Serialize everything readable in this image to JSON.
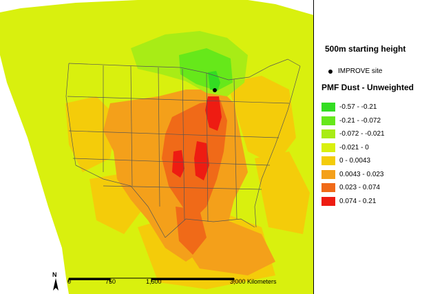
{
  "title": "500m starting height",
  "site_marker": {
    "label": "IMPROVE site",
    "icon": "black-dot-icon"
  },
  "legend": {
    "title": "PMF Dust - Unweighted",
    "classes": [
      {
        "label": "-0.57 - -0.21",
        "color": "#33dd22"
      },
      {
        "label": "-0.21 - -0.072",
        "color": "#66e81a"
      },
      {
        "label": "-0.072 - -0.021",
        "color": "#a8ec16"
      },
      {
        "label": "-0.021 - 0",
        "color": "#d9f00e"
      },
      {
        "label": "0 - 0.0043",
        "color": "#f4cc0a"
      },
      {
        "label": "0.0043 - 0.023",
        "color": "#f4a01a"
      },
      {
        "label": "0.023 - 0.074",
        "color": "#f06a18"
      },
      {
        "label": "0.074 - 0.21",
        "color": "#ee1c12"
      }
    ]
  },
  "scale_bar": {
    "labels": [
      "0",
      "750",
      "1,500",
      "3,000 Kilometers"
    ]
  },
  "north_arrow": {
    "label": "N"
  }
}
